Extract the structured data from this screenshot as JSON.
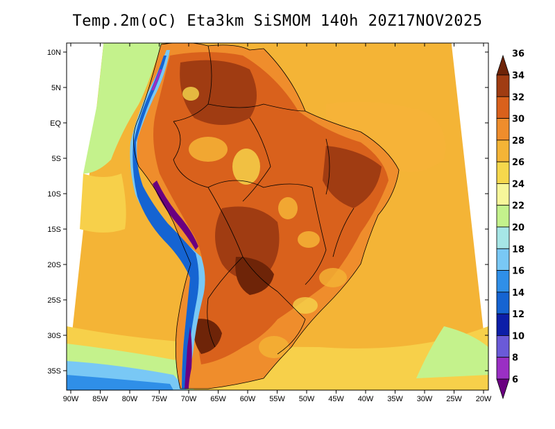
{
  "title": "Temp.2m(oC) Eta3km SiSMOM 140h 20Z17NOV2025",
  "lat_ticks": [
    "10N",
    "5N",
    "EQ",
    "5S",
    "10S",
    "15S",
    "20S",
    "25S",
    "30S",
    "35S"
  ],
  "lon_ticks": [
    "90W",
    "85W",
    "80W",
    "75W",
    "70W",
    "65W",
    "60W",
    "55W",
    "50W",
    "45W",
    "40W",
    "35W",
    "30W",
    "25W",
    "20W"
  ],
  "colorbar": {
    "labels": [
      "6",
      "8",
      "10",
      "12",
      "14",
      "16",
      "18",
      "20",
      "22",
      "24",
      "26",
      "28",
      "30",
      "32",
      "34",
      "36"
    ],
    "colors": [
      "#6a0080",
      "#9a2fc4",
      "#6a5ad8",
      "#0c1ea8",
      "#1564d2",
      "#2f8fe8",
      "#79c8f5",
      "#a6e6e6",
      "#c4f28c",
      "#f7f79a",
      "#f6d84c",
      "#f4b436",
      "#ef8d2c",
      "#d9611c",
      "#a03c12",
      "#6e2408"
    ]
  },
  "legend_colors": {
    "ocean_warm": "#f4b436",
    "ocean_mild": "#f7d04a",
    "ocean_cool": "#c4f28c",
    "land_hot": "#d9611c",
    "land_very_hot": "#a03c12",
    "land_warm": "#ef8d2c",
    "andes_cold": "#1564d2",
    "andes_very_cold": "#6a0080"
  }
}
